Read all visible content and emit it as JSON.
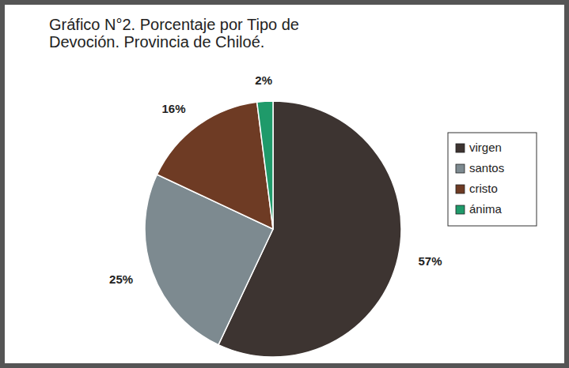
{
  "chart_data": {
    "type": "pie",
    "title": "Gráfico N°2. Porcentaje por Tipo de Devoción. Provincia de Chiloé.",
    "categories": [
      "virgen",
      "santos",
      "cristo",
      "ánima"
    ],
    "values": [
      57,
      25,
      16,
      2
    ],
    "value_labels": [
      "57%",
      "25%",
      "16%",
      "2%"
    ],
    "colors": [
      "#3d3431",
      "#7d8a90",
      "#6e3b24",
      "#1f9a6a"
    ],
    "data_labels": true,
    "legend": "right"
  }
}
